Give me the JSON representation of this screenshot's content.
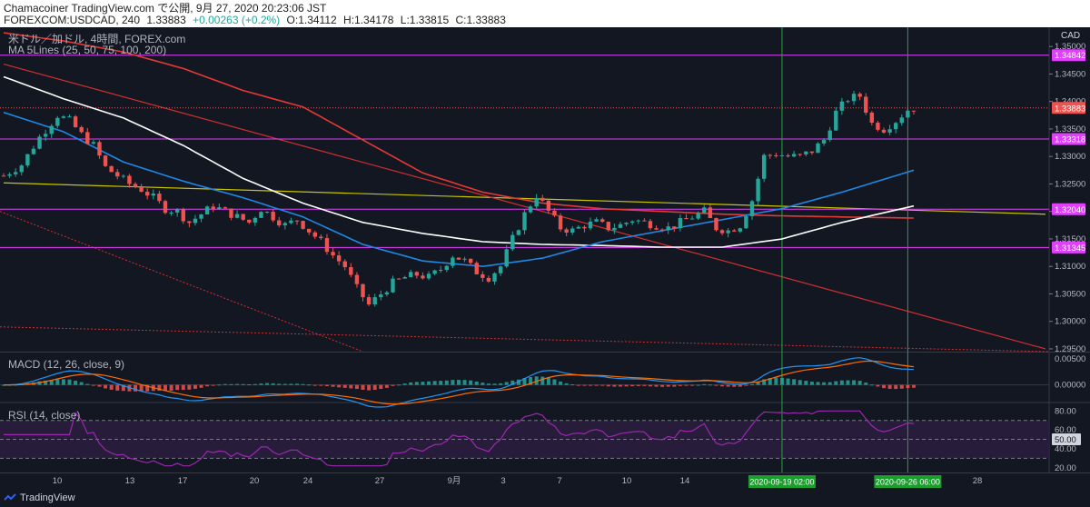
{
  "header": {
    "line1": "Chamacoiner TradingView.com で公開, 9月 27, 2020 20:23:06 JST",
    "symbol": "FOREXCOM:USDCAD, 240",
    "price": "1.33883",
    "change": "+0.00263 (+0.2%)",
    "open": "O:1.34112",
    "high": "H:1.34178",
    "low": "L:1.33815",
    "close": "C:1.33883"
  },
  "overlay": {
    "title": "米ドル／加ドル, 4時間, FOREX.com",
    "ma": "MA 5Lines (25, 50, 75, 100, 200)",
    "macd": "MACD (12, 26, close, 9)",
    "rsi": "RSI (14, close)"
  },
  "footer": {
    "brand": "TradingView"
  },
  "colors": {
    "background": "#131722",
    "up": "#26a69a",
    "down": "#ef5350",
    "horizontal_level": "#e040fb",
    "vertical_marker": "#2ea043",
    "ma_fast": "#1e88e5",
    "ma_mid": "#ffffff",
    "ma_slow": "#e53935",
    "trendline_yellow": "#c9c400",
    "trendline_red": "#d32f2f",
    "rsi_line": "#9c27b0"
  },
  "chart_data": [
    {
      "type": "candlestick",
      "currency": "CAD",
      "ylim": [
        1.2945,
        1.3535
      ],
      "y_ticks": [
        "1.35000",
        "1.34500",
        "1.34000",
        "1.33500",
        "1.33000",
        "1.32500",
        "1.32000",
        "1.31500",
        "1.31000",
        "1.30500",
        "1.30000",
        "1.29500"
      ],
      "x_ticks": [
        "10",
        "13",
        "17",
        "20",
        "24",
        "27",
        "9月",
        "3",
        "7",
        "10",
        "14",
        "17",
        "24",
        "28"
      ],
      "horizontal_levels": [
        {
          "label": "1.34842",
          "value": 1.34842
        },
        {
          "label": "1.33318",
          "value": 1.33318
        },
        {
          "label": "1.32040",
          "value": 1.3204
        },
        {
          "label": "1.31345",
          "value": 1.31345
        }
      ],
      "last_price": {
        "label": "1.33883",
        "value": 1.33883
      },
      "vertical_markers": [
        "2020-09-19  02:00",
        "2020-09-26  06:00"
      ],
      "price_path": [
        [
          0,
          1.3265
        ],
        [
          3,
          1.3285
        ],
        [
          6,
          1.3335
        ],
        [
          9,
          1.3375
        ],
        [
          11,
          1.3365
        ],
        [
          13,
          1.334
        ],
        [
          15,
          1.332
        ],
        [
          17,
          1.328
        ],
        [
          19,
          1.3265
        ],
        [
          21,
          1.325
        ],
        [
          23,
          1.324
        ],
        [
          25,
          1.3225
        ],
        [
          27,
          1.3205
        ],
        [
          29,
          1.32
        ],
        [
          31,
          1.318
        ],
        [
          33,
          1.3195
        ],
        [
          35,
          1.321
        ],
        [
          37,
          1.32
        ],
        [
          39,
          1.319
        ],
        [
          41,
          1.318
        ],
        [
          43,
          1.3205
        ],
        [
          45,
          1.319
        ],
        [
          47,
          1.3175
        ],
        [
          49,
          1.3185
        ],
        [
          51,
          1.3165
        ],
        [
          53,
          1.3145
        ],
        [
          55,
          1.312
        ],
        [
          57,
          1.31
        ],
        [
          59,
          1.306
        ],
        [
          61,
          1.303
        ],
        [
          63,
          1.305
        ],
        [
          65,
          1.307
        ],
        [
          67,
          1.308
        ],
        [
          69,
          1.3085
        ],
        [
          71,
          1.308
        ],
        [
          73,
          1.3095
        ],
        [
          75,
          1.312
        ],
        [
          77,
          1.311
        ],
        [
          79,
          1.309
        ],
        [
          81,
          1.308
        ],
        [
          83,
          1.31
        ],
        [
          85,
          1.315
        ],
        [
          87,
          1.3195
        ],
        [
          89,
          1.323
        ],
        [
          91,
          1.32
        ],
        [
          93,
          1.317
        ],
        [
          95,
          1.3165
        ],
        [
          97,
          1.3175
        ],
        [
          99,
          1.318
        ],
        [
          101,
          1.317
        ],
        [
          103,
          1.3175
        ],
        [
          105,
          1.3185
        ],
        [
          107,
          1.318
        ],
        [
          109,
          1.3175
        ],
        [
          111,
          1.317
        ],
        [
          113,
          1.318
        ],
        [
          115,
          1.319
        ],
        [
          117,
          1.32
        ],
        [
          119,
          1.317
        ],
        [
          121,
          1.3165
        ],
        [
          123,
          1.3175
        ],
        [
          125,
          1.322
        ],
        [
          127,
          1.33
        ],
        [
          129,
          1.3305
        ],
        [
          131,
          1.33
        ],
        [
          133,
          1.33
        ],
        [
          135,
          1.331
        ],
        [
          137,
          1.333
        ],
        [
          139,
          1.338
        ],
        [
          141,
          1.3405
        ],
        [
          143,
          1.341
        ],
        [
          145,
          1.336
        ],
        [
          147,
          1.335
        ],
        [
          149,
          1.3365
        ],
        [
          151,
          1.3385
        ],
        [
          152,
          1.3388
        ]
      ],
      "ma_blue": [
        [
          0,
          1.338
        ],
        [
          10,
          1.3345
        ],
        [
          20,
          1.329
        ],
        [
          30,
          1.3255
        ],
        [
          40,
          1.3225
        ],
        [
          50,
          1.319
        ],
        [
          60,
          1.314
        ],
        [
          70,
          1.311
        ],
        [
          80,
          1.31
        ],
        [
          90,
          1.3115
        ],
        [
          100,
          1.3145
        ],
        [
          110,
          1.3165
        ],
        [
          120,
          1.3185
        ],
        [
          130,
          1.3205
        ],
        [
          140,
          1.3235
        ],
        [
          152,
          1.3275
        ]
      ],
      "ma_white": [
        [
          0,
          1.3445
        ],
        [
          10,
          1.3405
        ],
        [
          20,
          1.337
        ],
        [
          30,
          1.332
        ],
        [
          40,
          1.326
        ],
        [
          50,
          1.3215
        ],
        [
          60,
          1.318
        ],
        [
          70,
          1.316
        ],
        [
          80,
          1.3145
        ],
        [
          90,
          1.314
        ],
        [
          100,
          1.3138
        ],
        [
          110,
          1.3135
        ],
        [
          120,
          1.3135
        ],
        [
          130,
          1.315
        ],
        [
          140,
          1.318
        ],
        [
          152,
          1.321
        ]
      ],
      "ma_orange": [
        [
          0,
          1.3525
        ],
        [
          10,
          1.351
        ],
        [
          20,
          1.349
        ],
        [
          30,
          1.346
        ],
        [
          40,
          1.342
        ],
        [
          50,
          1.339
        ],
        [
          60,
          1.333
        ],
        [
          70,
          1.327
        ],
        [
          80,
          1.3235
        ],
        [
          90,
          1.3215
        ],
        [
          100,
          1.3205
        ],
        [
          110,
          1.32
        ],
        [
          120,
          1.3195
        ],
        [
          130,
          1.3192
        ],
        [
          140,
          1.319
        ],
        [
          152,
          1.3188
        ]
      ],
      "trend_yellow": [
        [
          0,
          1.3252
        ],
        [
          174,
          1.3195
        ]
      ],
      "trend_red": [
        [
          0,
          1.3468
        ],
        [
          174,
          1.295
        ]
      ]
    },
    {
      "type": "histogram",
      "title": "MACD (12, 26, close, 9)",
      "y_ticks": [
        "0.00500",
        "0.00000"
      ],
      "ylim": [
        -0.0032,
        0.0062
      ]
    },
    {
      "type": "line",
      "title": "RSI (14, close)",
      "y_ticks": [
        "80.00",
        "60.00",
        "50.00",
        "40.00",
        "20.00"
      ],
      "current": "50.00",
      "ylim": [
        15,
        88
      ],
      "bands": [
        70,
        50,
        30
      ]
    }
  ]
}
